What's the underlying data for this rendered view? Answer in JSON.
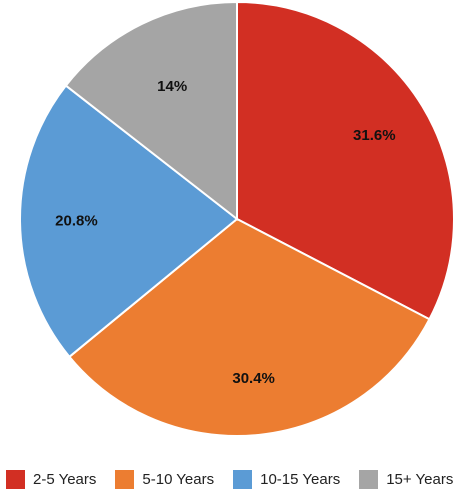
{
  "chart_data": {
    "type": "pie",
    "categories": [
      "2-5 Years",
      "5-10 Years",
      "10-15 Years",
      "15+ Years"
    ],
    "values": [
      31.6,
      30.4,
      20.8,
      14
    ],
    "value_labels": [
      "31.6%",
      "30.4%",
      "20.8%",
      "14%"
    ],
    "colors": [
      "#d22f23",
      "#ec7d31",
      "#5b9bd5",
      "#a5a5a5"
    ],
    "start_angle_deg": 0,
    "direction": "clockwise",
    "legend_position": "bottom",
    "title": ""
  }
}
